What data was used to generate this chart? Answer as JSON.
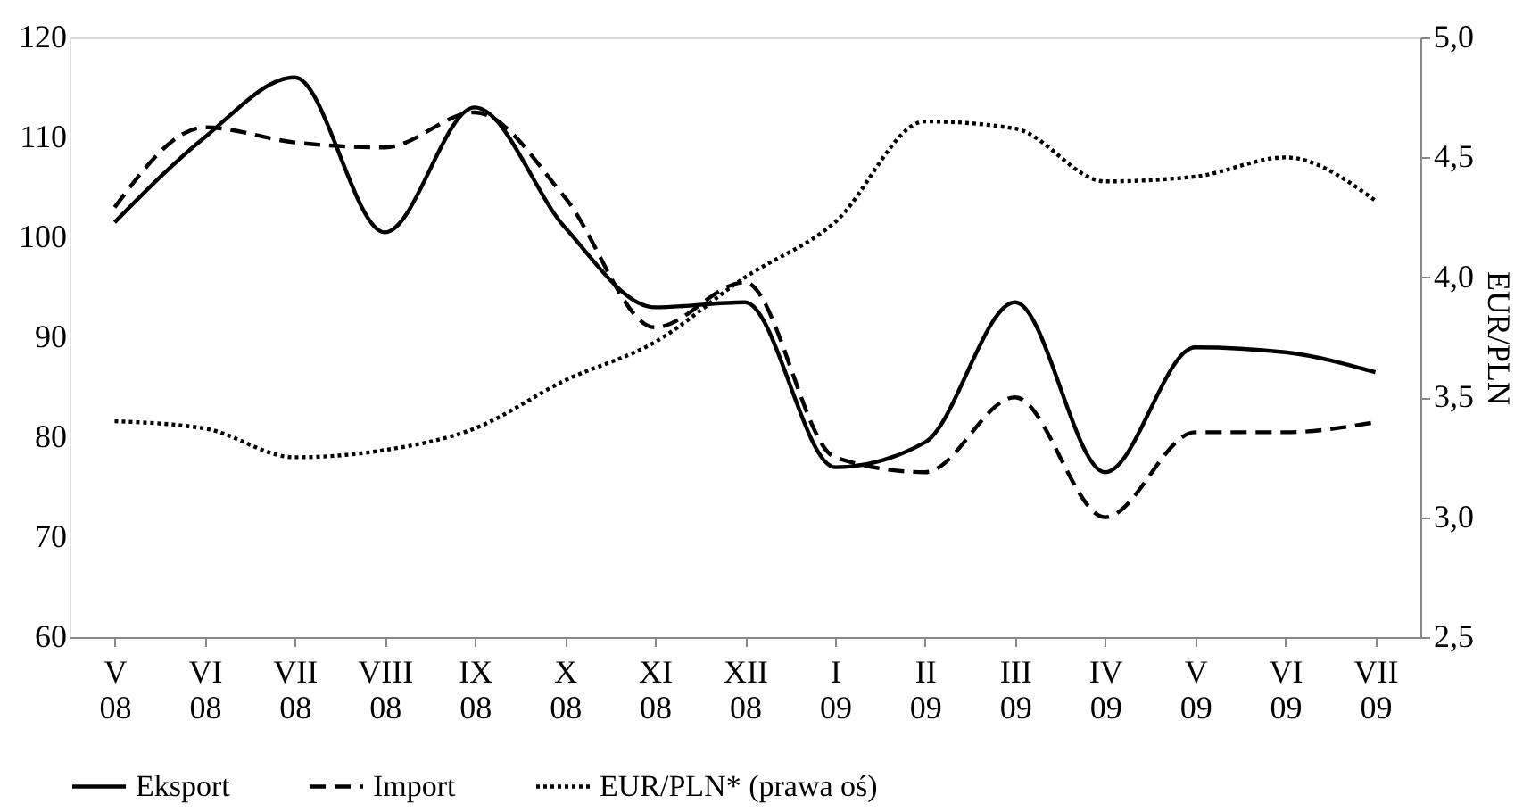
{
  "chart_data": {
    "type": "line",
    "y2label": "EUR/PLN",
    "categories": [
      "V 08",
      "VI 08",
      "VII 08",
      "VIII 08",
      "IX 08",
      "X 08",
      "XI 08",
      "XII 08",
      "I 09",
      "II 09",
      "III 09",
      "IV 09",
      "V 09",
      "VI 09",
      "VII 09"
    ],
    "series": [
      {
        "name": "Eksport",
        "color": "#000000",
        "line_style": "solid",
        "values": [
          101.5,
          110,
          116,
          100.5,
          113,
          101,
          93,
          93.5,
          77,
          79.5,
          93.5,
          76.5,
          89,
          88.5,
          86.5
        ]
      },
      {
        "name": "Import",
        "color": "#000000",
        "line_style": "dashed",
        "values": [
          103,
          111,
          109.5,
          109,
          112.5,
          104,
          91,
          95.5,
          78,
          76.5,
          84,
          72,
          80.5,
          80.5,
          81.5
        ]
      },
      {
        "name": "EUR/PLN* (prawa oś)",
        "color": "#000000",
        "line_style": "dotted",
        "axis": "y2",
        "values": [
          3.4,
          3.37,
          3.25,
          3.28,
          3.37,
          3.57,
          3.73,
          4.0,
          4.23,
          4.65,
          4.62,
          4.4,
          4.42,
          4.5,
          4.32
        ]
      }
    ],
    "ylim": [
      60,
      120
    ],
    "yticks": [
      60,
      70,
      80,
      90,
      100,
      110,
      120
    ],
    "y2lim": [
      2.5,
      5.0
    ],
    "y2ticks": [
      {
        "value": 2.5,
        "label": "2,5"
      },
      {
        "value": 3.0,
        "label": "3,0"
      },
      {
        "value": 3.5,
        "label": "3,5"
      },
      {
        "value": 4.0,
        "label": "4,0"
      },
      {
        "value": 4.5,
        "label": "4,5"
      },
      {
        "value": 5.0,
        "label": "5,0"
      }
    ],
    "legend": "bottom",
    "grid": false
  }
}
